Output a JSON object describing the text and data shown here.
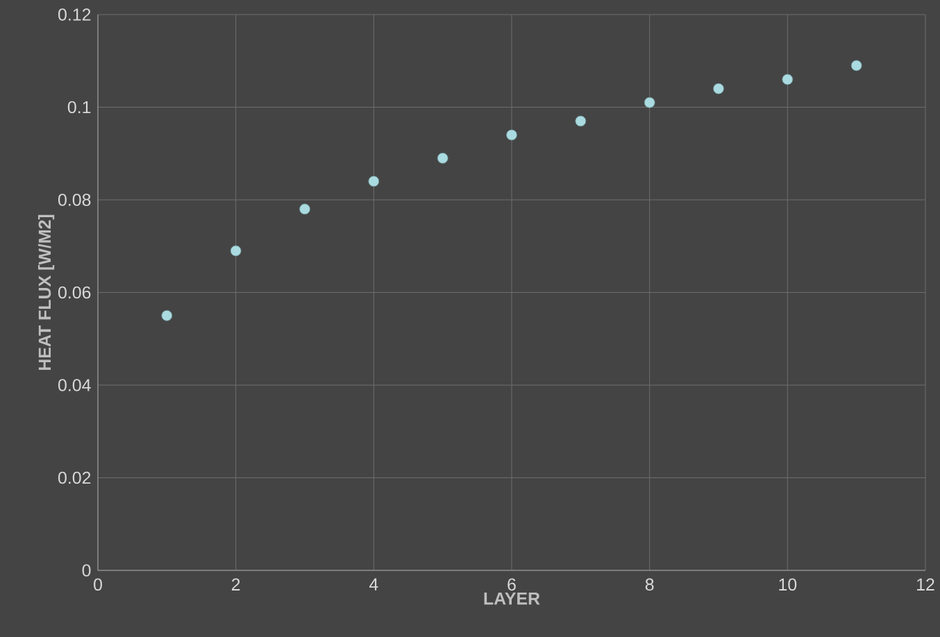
{
  "chart_data": {
    "type": "scatter",
    "xlabel": "LAYER",
    "ylabel": "HEAT FLUX [W/M2]",
    "x": [
      1,
      2,
      3,
      4,
      5,
      6,
      7,
      8,
      9,
      10,
      11
    ],
    "series": [
      {
        "color": "#a9dbe0",
        "values": [
          0.055,
          0.069,
          0.078,
          0.084,
          0.089,
          0.094,
          0.097,
          0.101,
          0.104,
          0.106,
          0.109
        ]
      }
    ],
    "xlim": [
      0,
      12
    ],
    "xticks": [
      0,
      2,
      4,
      6,
      8,
      10,
      12
    ],
    "ylim": [
      0,
      0.12
    ],
    "yticks": [
      0,
      0.02,
      0.04,
      0.06,
      0.08,
      0.1,
      0.12
    ],
    "grid": true,
    "marker": "circle"
  }
}
